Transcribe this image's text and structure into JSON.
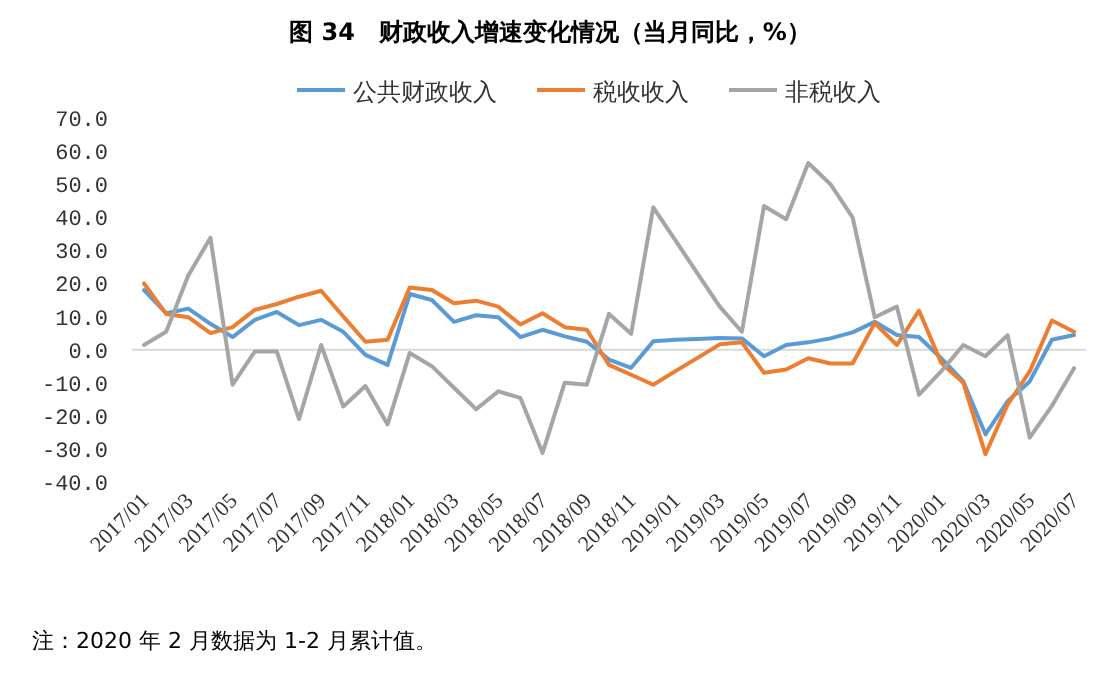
{
  "chart_data": {
    "type": "line",
    "title": "图 34　财政收入增速变化情况（当月同比，%）",
    "categories": [
      "2017/01",
      null,
      "2017/03",
      null,
      "2017/05",
      null,
      "2017/07",
      null,
      "2017/09",
      null,
      "2017/11",
      null,
      "2018/01",
      null,
      "2018/03",
      null,
      "2018/05",
      null,
      "2018/07",
      null,
      "2018/09",
      null,
      "2018/11",
      null,
      "2019/01",
      null,
      "2019/03",
      null,
      "2019/05",
      null,
      "2019/07",
      null,
      "2019/09",
      null,
      "2019/11",
      null,
      "2020/01",
      null,
      "2020/03",
      null,
      "2020/05",
      null,
      "2020/07"
    ],
    "series": [
      {
        "name": "公共财政收入",
        "color": "#5b9bd5",
        "values": [
          18,
          11,
          12.4,
          7.8,
          3.8,
          9,
          11.4,
          7.4,
          9,
          5.4,
          -1.6,
          -4.6,
          16.8,
          15,
          8.4,
          10.4,
          9.8,
          3.8,
          6,
          4,
          2.4,
          -3,
          -5.5,
          2.5,
          3,
          3.2,
          3.5,
          3.4,
          -2,
          1.4,
          2.2,
          3.4,
          5.2,
          8.4,
          4.4,
          3.8,
          -2.6,
          -9.6,
          -25.6,
          -15.6,
          -9.6,
          3,
          4.4
        ]
      },
      {
        "name": "税收收入",
        "color": "#ed7d31",
        "values": [
          20,
          10.8,
          9.8,
          5,
          6.8,
          12,
          13.8,
          16,
          17.8,
          10,
          2.4,
          3,
          18.8,
          18,
          14,
          14.8,
          13,
          7.6,
          11,
          6.8,
          6,
          -4.6,
          -7.6,
          -10.6,
          -6.5,
          -2.5,
          1.6,
          2.2,
          -7,
          -6,
          -2.6,
          -4.2,
          -4.2,
          8,
          1.4,
          11.8,
          -4,
          -10,
          -31.6,
          -16.6,
          -6.6,
          8.8,
          5.4
        ]
      },
      {
        "name": "非税收入",
        "color": "#a5a5a5",
        "values": [
          1.4,
          5.4,
          22.4,
          33.8,
          -10.6,
          -0.6,
          -0.6,
          -21,
          1.4,
          -17.2,
          -11,
          -22.6,
          -1,
          -5,
          -11.5,
          -18,
          -12.6,
          -14.6,
          -31.2,
          -10,
          -10.6,
          10.8,
          4.8,
          43,
          33,
          23,
          13,
          5.4,
          43.4,
          39.4,
          56.4,
          50,
          40,
          9.8,
          13,
          -13.6,
          -6.6,
          1.4,
          -2,
          4.4,
          -26.6,
          -17,
          -5.6
        ]
      }
    ],
    "ylim": [
      -40,
      70
    ],
    "yticks": [
      {
        "value": 70,
        "label": "70.0"
      },
      {
        "value": 60,
        "label": "60.0"
      },
      {
        "value": 50,
        "label": "50.0"
      },
      {
        "value": 40,
        "label": "40.0"
      },
      {
        "value": 30,
        "label": "30.0"
      },
      {
        "value": 20,
        "label": "20.0"
      },
      {
        "value": 10,
        "label": "10.0"
      },
      {
        "value": 0,
        "label": "0.0"
      },
      {
        "value": -10,
        "label": "-10.0"
      },
      {
        "value": -20,
        "label": "-20.0"
      },
      {
        "value": -30,
        "label": "-30.0"
      },
      {
        "value": -40,
        "label": "-40.0"
      }
    ],
    "legend": "top",
    "line_style": "solid",
    "annotations": [
      "注：2020 年 2 月数据为 1-2 月累计值。"
    ]
  }
}
